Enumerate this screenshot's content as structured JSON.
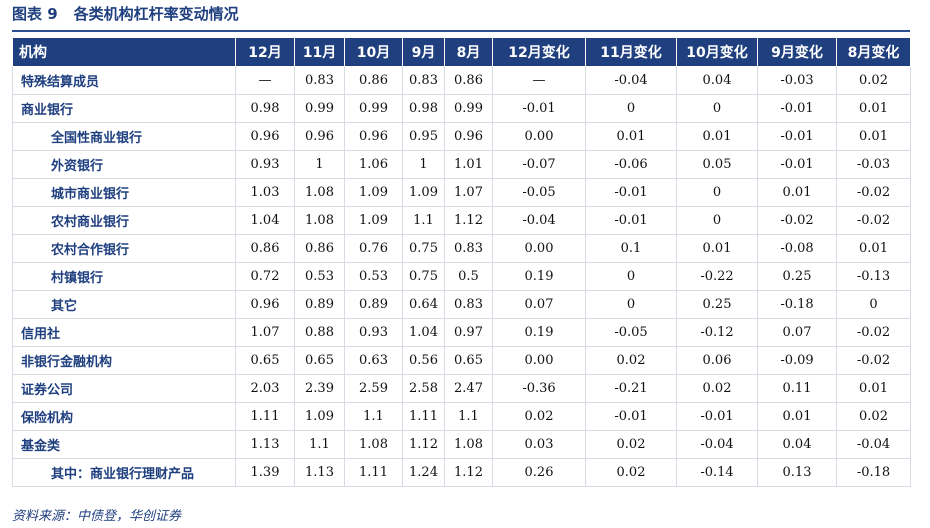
{
  "figure": {
    "label": "图表 9",
    "title": "各类机构杠杆率变动情况"
  },
  "table": {
    "headers": [
      "机构",
      "12月",
      "11月",
      "10月",
      "9月",
      "8月",
      "12月变化",
      "11月变化",
      "10月变化",
      "9月变化",
      "8月变化"
    ],
    "rows": [
      {
        "name": "特殊结算成员",
        "indent": false,
        "values": [
          "—",
          "0.83",
          "0.86",
          "0.83",
          "0.86",
          "—",
          "-0.04",
          "0.04",
          "-0.03",
          "0.02"
        ]
      },
      {
        "name": "商业银行",
        "indent": false,
        "values": [
          "0.98",
          "0.99",
          "0.99",
          "0.98",
          "0.99",
          "-0.01",
          "0",
          "0",
          "-0.01",
          "0.01"
        ]
      },
      {
        "name": "全国性商业银行",
        "indent": true,
        "values": [
          "0.96",
          "0.96",
          "0.96",
          "0.95",
          "0.96",
          "0.00",
          "0.01",
          "0.01",
          "-0.01",
          "0.01"
        ]
      },
      {
        "name": "外资银行",
        "indent": true,
        "values": [
          "0.93",
          "1",
          "1.06",
          "1",
          "1.01",
          "-0.07",
          "-0.06",
          "0.05",
          "-0.01",
          "-0.03"
        ]
      },
      {
        "name": "城市商业银行",
        "indent": true,
        "values": [
          "1.03",
          "1.08",
          "1.09",
          "1.09",
          "1.07",
          "-0.05",
          "-0.01",
          "0",
          "0.01",
          "-0.02"
        ]
      },
      {
        "name": "农村商业银行",
        "indent": true,
        "values": [
          "1.04",
          "1.08",
          "1.09",
          "1.1",
          "1.12",
          "-0.04",
          "-0.01",
          "0",
          "-0.02",
          "-0.02"
        ]
      },
      {
        "name": "农村合作银行",
        "indent": true,
        "values": [
          "0.86",
          "0.86",
          "0.76",
          "0.75",
          "0.83",
          "0.00",
          "0.1",
          "0.01",
          "-0.08",
          "0.01"
        ]
      },
      {
        "name": "村镇银行",
        "indent": true,
        "values": [
          "0.72",
          "0.53",
          "0.53",
          "0.75",
          "0.5",
          "0.19",
          "0",
          "-0.22",
          "0.25",
          "-0.13"
        ]
      },
      {
        "name": "其它",
        "indent": true,
        "values": [
          "0.96",
          "0.89",
          "0.89",
          "0.64",
          "0.83",
          "0.07",
          "0",
          "0.25",
          "-0.18",
          "0"
        ]
      },
      {
        "name": "信用社",
        "indent": false,
        "values": [
          "1.07",
          "0.88",
          "0.93",
          "1.04",
          "0.97",
          "0.19",
          "-0.05",
          "-0.12",
          "0.07",
          "-0.02"
        ]
      },
      {
        "name": "非银行金融机构",
        "indent": false,
        "values": [
          "0.65",
          "0.65",
          "0.63",
          "0.56",
          "0.65",
          "0.00",
          "0.02",
          "0.06",
          "-0.09",
          "-0.02"
        ]
      },
      {
        "name": "证券公司",
        "indent": false,
        "values": [
          "2.03",
          "2.39",
          "2.59",
          "2.58",
          "2.47",
          "-0.36",
          "-0.21",
          "0.02",
          "0.11",
          "0.01"
        ]
      },
      {
        "name": "保险机构",
        "indent": false,
        "values": [
          "1.11",
          "1.09",
          "1.1",
          "1.11",
          "1.1",
          "0.02",
          "-0.01",
          "-0.01",
          "0.01",
          "0.02"
        ]
      },
      {
        "name": "基金类",
        "indent": false,
        "values": [
          "1.13",
          "1.1",
          "1.08",
          "1.12",
          "1.08",
          "0.03",
          "0.02",
          "-0.04",
          "0.04",
          "-0.04"
        ]
      },
      {
        "name": "其中：商业银行理财产品",
        "indent": true,
        "values": [
          "1.39",
          "1.13",
          "1.11",
          "1.24",
          "1.12",
          "0.26",
          "0.02",
          "-0.14",
          "0.13",
          "-0.18"
        ]
      }
    ]
  },
  "source": "资料来源：中债登，华创证券",
  "colors": {
    "header_bg": "#1f3f7f",
    "label_text": "#1f3f7f",
    "grid": "#d7dbe3"
  }
}
